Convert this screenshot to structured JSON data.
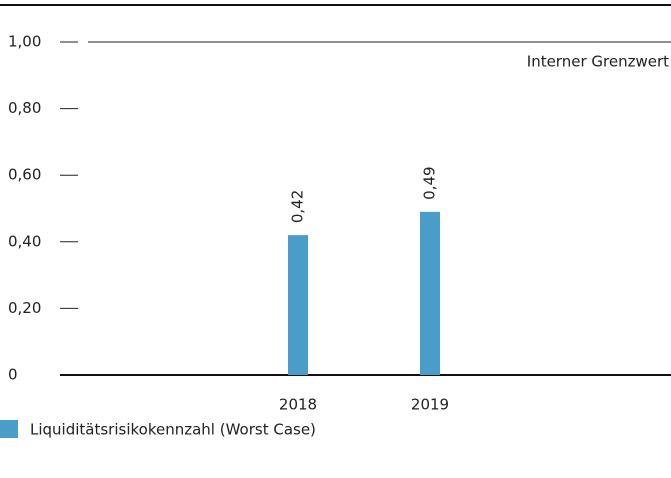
{
  "chart_data": {
    "type": "bar",
    "categories": [
      "2018",
      "2019"
    ],
    "series": [
      {
        "name": "Liquiditätsrisikokennzahl (Worst Case)",
        "color": "#4a9cc9",
        "values": [
          0.42,
          0.49
        ],
        "value_labels": [
          "0,42",
          "0,49"
        ]
      }
    ],
    "ylim": [
      0,
      1
    ],
    "yticks": [
      0,
      {
        "value": 0.2,
        "label": "0,20"
      },
      {
        "value": 0.4,
        "label": "0,40"
      },
      {
        "value": 0.6,
        "label": "0,60"
      },
      {
        "value": 0.8,
        "label": "0,80"
      },
      {
        "value": 1,
        "label": "1,00"
      }
    ],
    "reference_line": {
      "value": 1,
      "label": "Interner Grenzwert"
    },
    "legend": "bottom-left"
  }
}
